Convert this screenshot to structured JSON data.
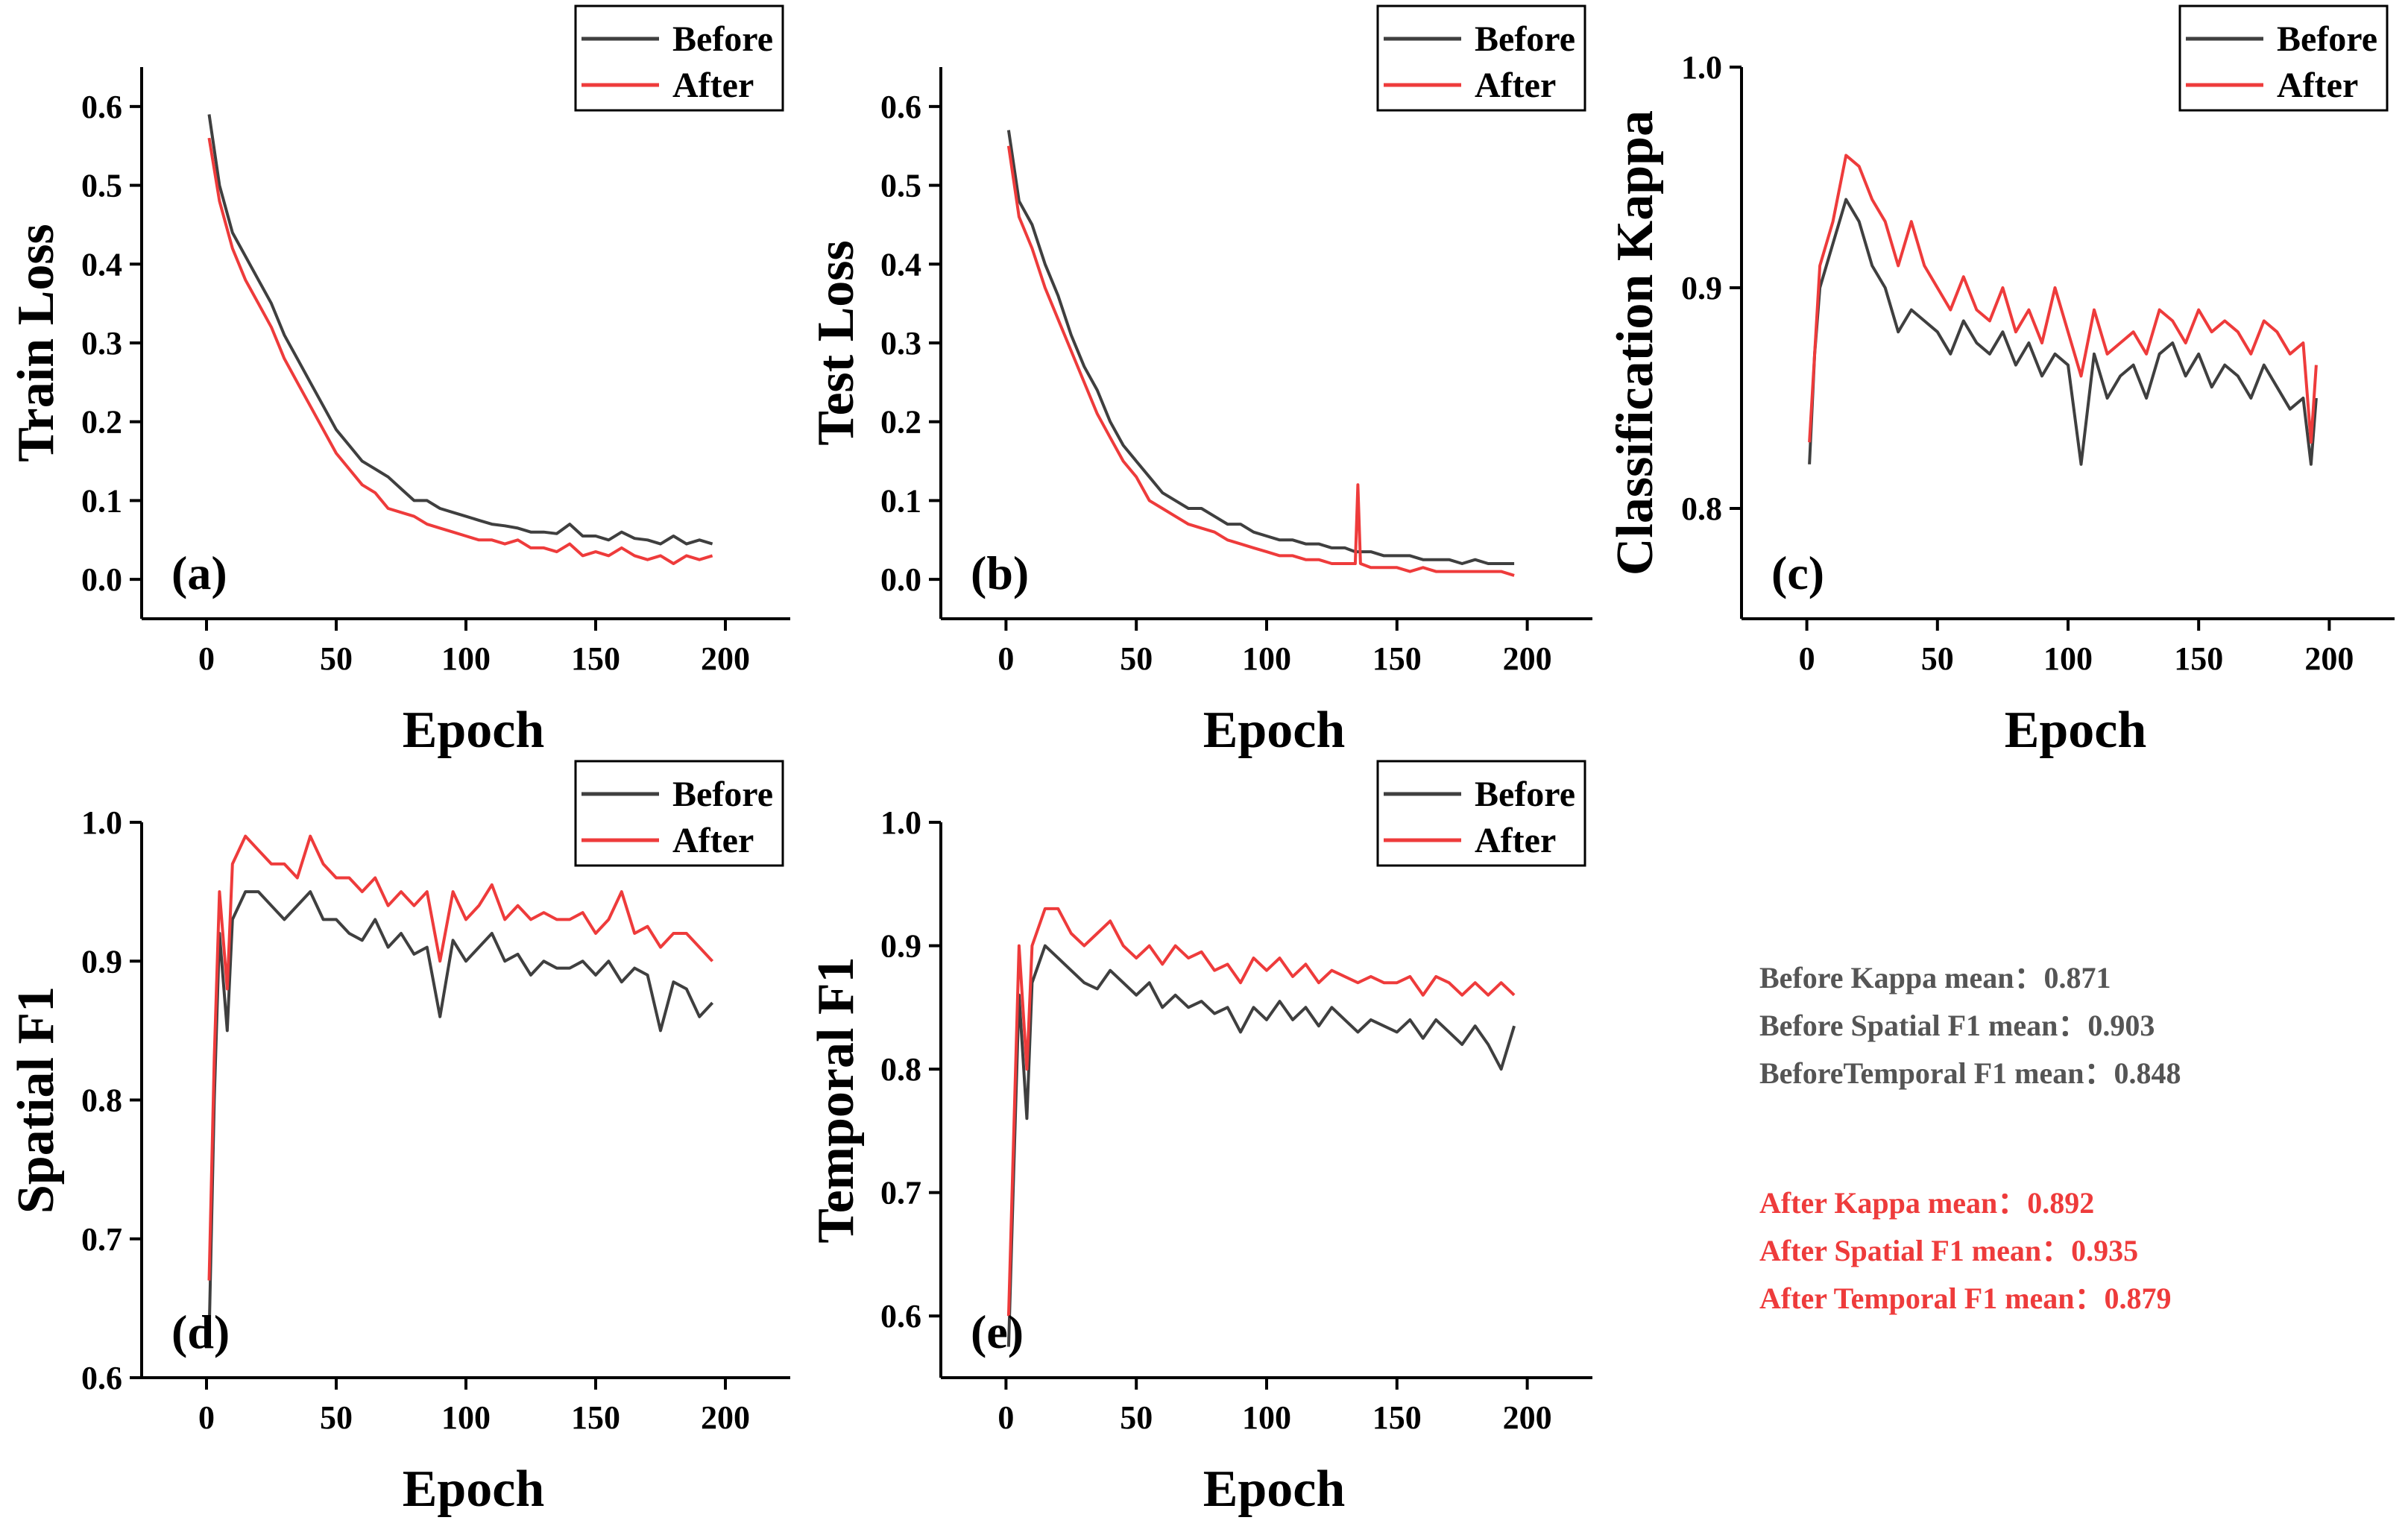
{
  "figure": {
    "colors": {
      "before": "#3f3f3f",
      "after": "#ee3b3b",
      "axis": "#000000",
      "before_text": "#555555",
      "after_text": "#ee3b3b"
    },
    "legend": {
      "before": "Before",
      "after": "After"
    }
  },
  "chart_data": [
    {
      "panel": "(a)",
      "type": "line",
      "xlabel": "Epoch",
      "ylabel": "Train Loss",
      "xlim": [
        -25,
        225
      ],
      "ylim": [
        -0.05,
        0.65
      ],
      "xticks": [
        0,
        50,
        100,
        150,
        200
      ],
      "yticks": [
        0.0,
        0.1,
        0.2,
        0.3,
        0.4,
        0.5,
        0.6
      ],
      "ytick_labels": [
        "0.0",
        "0.1",
        "0.2",
        "0.3",
        "0.4",
        "0.5",
        "0.6"
      ],
      "x": [
        1,
        5,
        10,
        15,
        20,
        25,
        30,
        35,
        40,
        45,
        50,
        55,
        60,
        65,
        70,
        75,
        80,
        85,
        90,
        95,
        100,
        105,
        110,
        115,
        120,
        125,
        130,
        135,
        140,
        145,
        150,
        155,
        160,
        165,
        170,
        175,
        180,
        185,
        190,
        195
      ],
      "series": [
        {
          "name": "Before",
          "values": [
            0.59,
            0.5,
            0.44,
            0.41,
            0.38,
            0.35,
            0.31,
            0.28,
            0.25,
            0.22,
            0.19,
            0.17,
            0.15,
            0.14,
            0.13,
            0.115,
            0.1,
            0.1,
            0.09,
            0.085,
            0.08,
            0.075,
            0.07,
            0.068,
            0.065,
            0.06,
            0.06,
            0.058,
            0.07,
            0.055,
            0.055,
            0.05,
            0.06,
            0.052,
            0.05,
            0.045,
            0.055,
            0.045,
            0.05,
            0.045
          ]
        },
        {
          "name": "After",
          "values": [
            0.56,
            0.48,
            0.42,
            0.38,
            0.35,
            0.32,
            0.28,
            0.25,
            0.22,
            0.19,
            0.16,
            0.14,
            0.12,
            0.11,
            0.09,
            0.085,
            0.08,
            0.07,
            0.065,
            0.06,
            0.055,
            0.05,
            0.05,
            0.045,
            0.05,
            0.04,
            0.04,
            0.035,
            0.045,
            0.03,
            0.035,
            0.03,
            0.04,
            0.03,
            0.025,
            0.03,
            0.02,
            0.03,
            0.025,
            0.03
          ]
        }
      ]
    },
    {
      "panel": "(b)",
      "type": "line",
      "xlabel": "Epoch",
      "ylabel": "Test Loss",
      "xlim": [
        -25,
        225
      ],
      "ylim": [
        -0.05,
        0.65
      ],
      "xticks": [
        0,
        50,
        100,
        150,
        200
      ],
      "yticks": [
        0.0,
        0.1,
        0.2,
        0.3,
        0.4,
        0.5,
        0.6
      ],
      "ytick_labels": [
        "0.0",
        "0.1",
        "0.2",
        "0.3",
        "0.4",
        "0.5",
        "0.6"
      ],
      "x": [
        1,
        5,
        10,
        15,
        20,
        25,
        30,
        35,
        40,
        45,
        50,
        55,
        60,
        65,
        70,
        75,
        80,
        85,
        90,
        95,
        100,
        105,
        110,
        115,
        120,
        125,
        130,
        134,
        135,
        136,
        140,
        145,
        150,
        155,
        160,
        165,
        170,
        175,
        180,
        185,
        190,
        195
      ],
      "series": [
        {
          "name": "Before",
          "values": [
            0.57,
            0.48,
            0.45,
            0.4,
            0.36,
            0.31,
            0.27,
            0.24,
            0.2,
            0.17,
            0.15,
            0.13,
            0.11,
            0.1,
            0.09,
            0.09,
            0.08,
            0.07,
            0.07,
            0.06,
            0.055,
            0.05,
            0.05,
            0.045,
            0.045,
            0.04,
            0.04,
            0.035,
            0.035,
            0.035,
            0.035,
            0.03,
            0.03,
            0.03,
            0.025,
            0.025,
            0.025,
            0.02,
            0.025,
            0.02,
            0.02,
            0.02
          ]
        },
        {
          "name": "After",
          "values": [
            0.55,
            0.46,
            0.42,
            0.37,
            0.33,
            0.29,
            0.25,
            0.21,
            0.18,
            0.15,
            0.13,
            0.1,
            0.09,
            0.08,
            0.07,
            0.065,
            0.06,
            0.05,
            0.045,
            0.04,
            0.035,
            0.03,
            0.03,
            0.025,
            0.025,
            0.02,
            0.02,
            0.02,
            0.12,
            0.02,
            0.015,
            0.015,
            0.015,
            0.01,
            0.015,
            0.01,
            0.01,
            0.01,
            0.01,
            0.01,
            0.01,
            0.005
          ]
        }
      ]
    },
    {
      "panel": "(c)",
      "type": "line",
      "xlabel": "Epoch",
      "ylabel": "Classification Kappa",
      "xlim": [
        -25,
        225
      ],
      "ylim": [
        0.75,
        1.0
      ],
      "xticks": [
        0,
        50,
        100,
        150,
        200
      ],
      "yticks": [
        0.8,
        0.9,
        1.0
      ],
      "ytick_labels": [
        "0.8",
        "0.9",
        "1.0"
      ],
      "x": [
        1,
        3,
        5,
        10,
        15,
        20,
        25,
        30,
        35,
        40,
        45,
        50,
        55,
        60,
        65,
        70,
        75,
        80,
        85,
        90,
        95,
        100,
        105,
        110,
        115,
        120,
        125,
        130,
        135,
        140,
        145,
        150,
        155,
        160,
        165,
        170,
        175,
        180,
        185,
        190,
        193,
        195
      ],
      "series": [
        {
          "name": "Before",
          "values": [
            0.82,
            0.87,
            0.9,
            0.92,
            0.94,
            0.93,
            0.91,
            0.9,
            0.88,
            0.89,
            0.885,
            0.88,
            0.87,
            0.885,
            0.875,
            0.87,
            0.88,
            0.865,
            0.875,
            0.86,
            0.87,
            0.865,
            0.82,
            0.87,
            0.85,
            0.86,
            0.865,
            0.85,
            0.87,
            0.875,
            0.86,
            0.87,
            0.855,
            0.865,
            0.86,
            0.85,
            0.865,
            0.855,
            0.845,
            0.85,
            0.82,
            0.85
          ]
        },
        {
          "name": "After",
          "values": [
            0.83,
            0.87,
            0.91,
            0.93,
            0.96,
            0.955,
            0.94,
            0.93,
            0.91,
            0.93,
            0.91,
            0.9,
            0.89,
            0.905,
            0.89,
            0.885,
            0.9,
            0.88,
            0.89,
            0.875,
            0.9,
            0.88,
            0.86,
            0.89,
            0.87,
            0.875,
            0.88,
            0.87,
            0.89,
            0.885,
            0.875,
            0.89,
            0.88,
            0.885,
            0.88,
            0.87,
            0.885,
            0.88,
            0.87,
            0.875,
            0.83,
            0.865
          ]
        }
      ]
    },
    {
      "panel": "(d)",
      "type": "line",
      "xlabel": "Epoch",
      "ylabel": "Spatial F1",
      "xlim": [
        -25,
        225
      ],
      "ylim": [
        0.6,
        1.0
      ],
      "xticks": [
        0,
        50,
        100,
        150,
        200
      ],
      "yticks": [
        0.6,
        0.7,
        0.8,
        0.9,
        1.0
      ],
      "ytick_labels": [
        "0.6",
        "0.7",
        "0.8",
        "0.9",
        "1.0"
      ],
      "x": [
        1,
        3,
        5,
        8,
        10,
        15,
        20,
        25,
        30,
        35,
        40,
        45,
        50,
        55,
        60,
        65,
        70,
        75,
        80,
        85,
        90,
        95,
        100,
        105,
        110,
        115,
        120,
        125,
        130,
        135,
        140,
        145,
        150,
        155,
        160,
        165,
        170,
        175,
        180,
        185,
        190,
        195
      ],
      "series": [
        {
          "name": "Before",
          "values": [
            0.63,
            0.8,
            0.92,
            0.85,
            0.93,
            0.95,
            0.95,
            0.94,
            0.93,
            0.94,
            0.95,
            0.93,
            0.93,
            0.92,
            0.915,
            0.93,
            0.91,
            0.92,
            0.905,
            0.91,
            0.86,
            0.915,
            0.9,
            0.91,
            0.92,
            0.9,
            0.905,
            0.89,
            0.9,
            0.895,
            0.895,
            0.9,
            0.89,
            0.9,
            0.885,
            0.895,
            0.89,
            0.85,
            0.885,
            0.88,
            0.86,
            0.87
          ]
        },
        {
          "name": "After",
          "values": [
            0.67,
            0.83,
            0.95,
            0.88,
            0.97,
            0.99,
            0.98,
            0.97,
            0.97,
            0.96,
            0.99,
            0.97,
            0.96,
            0.96,
            0.95,
            0.96,
            0.94,
            0.95,
            0.94,
            0.95,
            0.9,
            0.95,
            0.93,
            0.94,
            0.955,
            0.93,
            0.94,
            0.93,
            0.935,
            0.93,
            0.93,
            0.935,
            0.92,
            0.93,
            0.95,
            0.92,
            0.925,
            0.91,
            0.92,
            0.92,
            0.91,
            0.9
          ]
        }
      ]
    },
    {
      "panel": "(e)",
      "type": "line",
      "xlabel": "Epoch",
      "ylabel": "Temporal F1",
      "xlim": [
        -25,
        225
      ],
      "ylim": [
        0.55,
        1.0
      ],
      "xticks": [
        0,
        50,
        100,
        150,
        200
      ],
      "yticks": [
        0.6,
        0.7,
        0.8,
        0.9,
        1.0
      ],
      "ytick_labels": [
        "0.6",
        "0.7",
        "0.8",
        "0.9",
        "1.0"
      ],
      "x": [
        1,
        3,
        5,
        8,
        10,
        15,
        20,
        25,
        30,
        35,
        40,
        45,
        50,
        55,
        60,
        65,
        70,
        75,
        80,
        85,
        90,
        95,
        100,
        105,
        110,
        115,
        120,
        125,
        130,
        135,
        140,
        145,
        150,
        155,
        160,
        165,
        170,
        175,
        180,
        185,
        190,
        195
      ],
      "series": [
        {
          "name": "Before",
          "values": [
            0.575,
            0.72,
            0.86,
            0.76,
            0.87,
            0.9,
            0.89,
            0.88,
            0.87,
            0.865,
            0.88,
            0.87,
            0.86,
            0.87,
            0.85,
            0.86,
            0.85,
            0.855,
            0.845,
            0.85,
            0.83,
            0.85,
            0.84,
            0.855,
            0.84,
            0.85,
            0.835,
            0.85,
            0.84,
            0.83,
            0.84,
            0.835,
            0.83,
            0.84,
            0.825,
            0.84,
            0.83,
            0.82,
            0.835,
            0.82,
            0.8,
            0.835
          ]
        },
        {
          "name": "After",
          "values": [
            0.6,
            0.75,
            0.9,
            0.8,
            0.9,
            0.93,
            0.93,
            0.91,
            0.9,
            0.91,
            0.92,
            0.9,
            0.89,
            0.9,
            0.885,
            0.9,
            0.89,
            0.895,
            0.88,
            0.885,
            0.87,
            0.89,
            0.88,
            0.89,
            0.875,
            0.885,
            0.87,
            0.88,
            0.875,
            0.87,
            0.875,
            0.87,
            0.87,
            0.875,
            0.86,
            0.875,
            0.87,
            0.86,
            0.87,
            0.86,
            0.87,
            0.86
          ]
        }
      ]
    }
  ],
  "stats": {
    "before_kappa": "Before Kappa mean：0.871",
    "before_spatial": "Before Spatial F1 mean：0.903",
    "before_temporal": "BeforeTemporal F1 mean：0.848",
    "after_kappa": "After Kappa mean：0.892",
    "after_spatial": "After Spatial F1 mean：0.935",
    "after_temporal": "After Temporal F1 mean：0.879"
  }
}
